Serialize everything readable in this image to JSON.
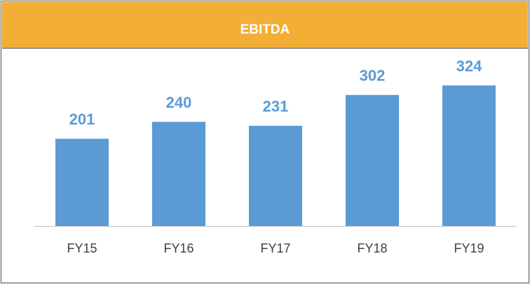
{
  "chart_data": {
    "type": "bar",
    "title": "EBITDA",
    "categories": [
      "FY15",
      "FY16",
      "FY17",
      "FY18",
      "FY19"
    ],
    "values": [
      201,
      240,
      231,
      302,
      324
    ],
    "color": "#5b9bd5",
    "header_color": "#f3ae35",
    "ylim": [
      0,
      400
    ]
  }
}
